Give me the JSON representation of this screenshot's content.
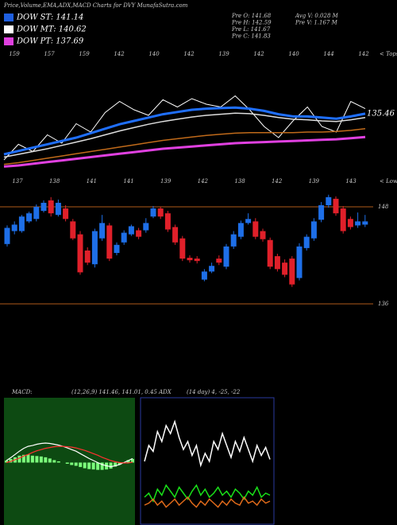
{
  "header": {
    "title": "Price,Volume,EMA,ADX,MACD Charts for DVY MunafaSutra.com",
    "legend": [
      {
        "name": "DOW ST: 141.14",
        "color": "#1f5fe0"
      },
      {
        "name": "DOW MT: 140.62",
        "color": "#ffffff"
      },
      {
        "name": "DOW PT: 137.69",
        "color": "#e040e0"
      }
    ],
    "stats_left": [
      "Pre  O: 141.68",
      "Pre  H: 142.59",
      "Pre  L: 141.67",
      "Pre  C: 141.83"
    ],
    "stats_right": [
      "Avg V: 0.028 M",
      "Pre  V: 1.167 M"
    ]
  },
  "chart_data": [
    {
      "type": "line",
      "ylim": [
        125,
        145
      ],
      "top_labels": [
        "159",
        "157",
        "159",
        "142",
        "140",
        "142",
        "139",
        "142",
        "140",
        "144",
        "142"
      ],
      "bottom_labels": [
        "137",
        "138",
        "141",
        "141",
        "139",
        "142",
        "138",
        "142",
        "139",
        "143"
      ],
      "annotation": "135.46",
      "top_marker": "< Tops",
      "bottom_marker": "< Lower",
      "series": [
        {
          "color": "#ffffff",
          "width": 1,
          "values": [
            127.0,
            129.8,
            128.5,
            131.5,
            130.0,
            133.5,
            132.0,
            135.5,
            137.5,
            136.0,
            135.0,
            137.8,
            136.5,
            138.0,
            137.0,
            136.5,
            138.5,
            136.0,
            133.0,
            131.0,
            134.0,
            136.5,
            133.0,
            132.0,
            137.5,
            136.2
          ]
        },
        {
          "color": "#1f6fff",
          "width": 3,
          "values": [
            128.0,
            128.6,
            129.2,
            129.8,
            130.4,
            131.0,
            131.8,
            132.6,
            133.4,
            134.0,
            134.6,
            135.2,
            135.6,
            136.0,
            136.2,
            136.3,
            136.4,
            136.2,
            135.8,
            135.2,
            134.8,
            134.8,
            134.6,
            134.4,
            134.8,
            135.3
          ]
        },
        {
          "color": "#dddddd",
          "width": 1.5,
          "values": [
            127.5,
            128.0,
            128.5,
            129.0,
            129.6,
            130.2,
            130.8,
            131.5,
            132.2,
            132.8,
            133.4,
            133.9,
            134.3,
            134.7,
            135.0,
            135.2,
            135.4,
            135.3,
            135.0,
            134.6,
            134.3,
            134.2,
            134.0,
            133.9,
            134.2,
            134.6
          ]
        },
        {
          "color": "#c06a1a",
          "width": 1.5,
          "values": [
            126.2,
            126.5,
            126.9,
            127.3,
            127.7,
            128.1,
            128.5,
            128.9,
            129.3,
            129.7,
            130.1,
            130.5,
            130.8,
            131.1,
            131.4,
            131.6,
            131.8,
            131.9,
            131.9,
            131.9,
            131.9,
            132.0,
            132.0,
            132.1,
            132.3,
            132.6
          ]
        },
        {
          "color": "#e040e0",
          "width": 3,
          "values": [
            125.8,
            126.0,
            126.3,
            126.6,
            126.9,
            127.2,
            127.5,
            127.8,
            128.1,
            128.4,
            128.7,
            129.0,
            129.2,
            129.4,
            129.6,
            129.8,
            130.0,
            130.1,
            130.2,
            130.3,
            130.4,
            130.5,
            130.6,
            130.7,
            130.9,
            131.1
          ]
        }
      ]
    },
    {
      "type": "candlestick",
      "ylim": [
        135,
        150
      ],
      "yticks": [
        136,
        148
      ],
      "up_color": "#1e6fe8",
      "down_color": "#e0202a",
      "line_color": "#b05a1a",
      "open": [
        143.4,
        145.0,
        145.0,
        146.2,
        146.5,
        147.5,
        148.8,
        147.0,
        147.8,
        146.2,
        144.6,
        142.6,
        140.9,
        144.1,
        145.7,
        142.3,
        143.6,
        144.6,
        145.1,
        145.1,
        146.8,
        147.8,
        147.2,
        145.5,
        144.1,
        141.7,
        141.6,
        139.0,
        140.0,
        141.6,
        140.6,
        143.1,
        144.3,
        146.0,
        146.2,
        145.0,
        143.9,
        141.9,
        141.1,
        141.6,
        139.2,
        142.9,
        144.1,
        146.4,
        148.2,
        149.0,
        147.8,
        146.5,
        145.7,
        145.8
      ],
      "high": [
        145.7,
        146.2,
        147.0,
        147.4,
        148.3,
        148.8,
        149.2,
        148.9,
        148.2,
        146.5,
        145.0,
        143.0,
        145.3,
        147.0,
        146.0,
        143.6,
        145.1,
        145.8,
        145.4,
        146.6,
        148.1,
        148.0,
        147.5,
        145.8,
        144.4,
        142.0,
        141.9,
        140.3,
        141.1,
        142.0,
        143.4,
        145.0,
        146.3,
        147.2,
        146.6,
        145.3,
        144.2,
        142.2,
        141.5,
        141.9,
        143.5,
        144.6,
        146.6,
        148.6,
        149.5,
        149.3,
        148.1,
        146.8,
        147.3,
        147.0
      ],
      "low": [
        143.1,
        144.6,
        144.8,
        146.0,
        146.2,
        147.3,
        146.8,
        146.8,
        146.2,
        143.9,
        139.6,
        140.8,
        140.5,
        143.8,
        141.3,
        142.0,
        143.3,
        144.4,
        144.0,
        144.8,
        146.6,
        146.5,
        144.9,
        143.3,
        141.3,
        141.1,
        141.0,
        138.8,
        139.8,
        140.8,
        140.3,
        142.8,
        144.0,
        145.8,
        144.0,
        143.7,
        140.3,
        140.0,
        139.3,
        138.1,
        138.9,
        142.6,
        143.8,
        146.1,
        147.9,
        146.9,
        144.7,
        145.2,
        145.4,
        145.5
      ],
      "close": [
        145.4,
        145.8,
        146.8,
        147.2,
        148.0,
        148.5,
        147.2,
        148.5,
        146.5,
        144.1,
        139.9,
        141.1,
        145.0,
        146.0,
        141.6,
        143.3,
        144.8,
        145.6,
        144.3,
        146.0,
        147.8,
        146.8,
        145.2,
        143.6,
        141.6,
        141.4,
        141.3,
        140.0,
        140.7,
        141.1,
        143.1,
        144.6,
        146.0,
        146.5,
        144.3,
        144.0,
        140.6,
        140.3,
        139.6,
        138.4,
        143.1,
        144.3,
        146.2,
        148.2,
        149.2,
        147.2,
        145.0,
        145.5,
        146.2,
        146.2
      ]
    },
    {
      "type": "macd",
      "title": "MACD:",
      "subtitle": "(12,26,9) 141.46, 141.01, 0.45 ADX",
      "ylim": [
        -1.5,
        1.5
      ],
      "background": "#0d4a12",
      "histogram": {
        "color": "#7cff7c",
        "values": [
          0.05,
          0.09,
          0.13,
          0.17,
          0.19,
          0.2,
          0.17,
          0.16,
          0.15,
          0.13,
          0.1,
          0.06,
          0.03,
          0.0,
          -0.03,
          -0.06,
          -0.08,
          -0.11,
          -0.14,
          -0.16,
          -0.17,
          -0.18,
          -0.18,
          -0.17,
          -0.15,
          -0.1,
          -0.05,
          0.01,
          0.06,
          0.09
        ]
      },
      "series": [
        {
          "color": "#ffffff",
          "values": [
            0.05,
            0.12,
            0.2,
            0.28,
            0.35,
            0.4,
            0.42,
            0.45,
            0.47,
            0.48,
            0.47,
            0.45,
            0.43,
            0.4,
            0.36,
            0.32,
            0.28,
            0.22,
            0.16,
            0.1,
            0.05,
            0.0,
            -0.05,
            -0.08,
            -0.1,
            -0.08,
            -0.05,
            0.0,
            0.05,
            0.1
          ]
        },
        {
          "color": "#ff3030",
          "values": [
            0.0,
            0.03,
            0.07,
            0.11,
            0.16,
            0.2,
            0.25,
            0.29,
            0.32,
            0.35,
            0.37,
            0.39,
            0.4,
            0.4,
            0.39,
            0.38,
            0.36,
            0.33,
            0.3,
            0.26,
            0.22,
            0.18,
            0.13,
            0.09,
            0.05,
            0.02,
            0.0,
            -0.01,
            -0.01,
            0.01
          ]
        }
      ]
    },
    {
      "type": "adx",
      "title": "(14 day) 4, -25, -22",
      "ylim": [
        0,
        60
      ],
      "border": "#2a3aa0",
      "series": [
        {
          "color": "#ffffff",
          "values": [
            30,
            38,
            35,
            45,
            40,
            48,
            44,
            50,
            42,
            36,
            40,
            33,
            38,
            28,
            34,
            30,
            40,
            36,
            44,
            38,
            32,
            40,
            35,
            42,
            36,
            30,
            38,
            33,
            37,
            31
          ]
        },
        {
          "color": "#19e019",
          "values": [
            12,
            14,
            10,
            16,
            13,
            18,
            15,
            12,
            17,
            14,
            11,
            15,
            18,
            13,
            16,
            12,
            14,
            17,
            13,
            15,
            12,
            16,
            14,
            11,
            15,
            13,
            17,
            12,
            14,
            13
          ]
        },
        {
          "color": "#e06a1a",
          "values": [
            8,
            9,
            11,
            8,
            10,
            7,
            9,
            11,
            8,
            10,
            12,
            9,
            7,
            10,
            8,
            11,
            9,
            7,
            10,
            8,
            11,
            9,
            8,
            12,
            9,
            10,
            8,
            11,
            9,
            10
          ]
        }
      ]
    }
  ]
}
